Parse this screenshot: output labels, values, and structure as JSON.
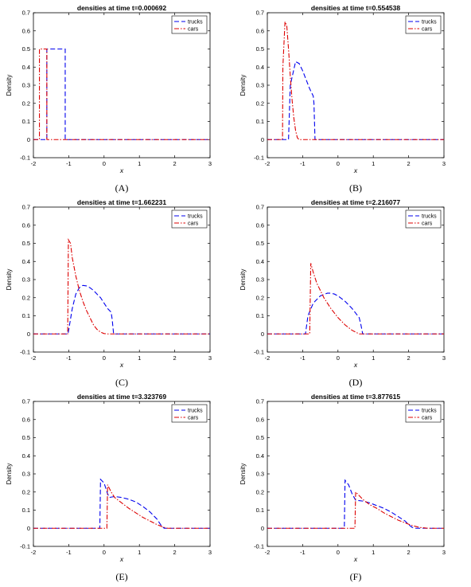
{
  "colors": {
    "trucks": "#0000ee",
    "cars": "#dd0000",
    "axis": "#000000"
  },
  "chart_data": [
    {
      "type": "line",
      "caption": "(A)",
      "title": "densities at time t=0.000692",
      "xlabel": "x",
      "ylabel": "Density",
      "xlim": [
        -2,
        3
      ],
      "ylim": [
        -0.1,
        0.7
      ],
      "xticks": [
        "-2",
        "-1",
        "0",
        "1",
        "2",
        "3"
      ],
      "yticks": [
        "-0.1",
        "0",
        "0.1",
        "0.2",
        "0.3",
        "0.4",
        "0.5",
        "0.6",
        "0.7"
      ],
      "legend": {
        "position": "top-right"
      },
      "series": [
        {
          "name": "trucks",
          "style": "dashed",
          "x": [
            -2,
            -1.62,
            -1.62,
            -1.1,
            -1.1,
            3
          ],
          "y": [
            0,
            0,
            0.5,
            0.5,
            0,
            0
          ]
        },
        {
          "name": "cars",
          "style": "dashdot",
          "x": [
            -2,
            -1.83,
            -1.83,
            -1.62,
            -1.62,
            3
          ],
          "y": [
            0,
            0,
            0.5,
            0.5,
            0,
            0
          ]
        }
      ]
    },
    {
      "type": "line",
      "caption": "(B)",
      "title": "densities at time t=0.554538",
      "xlabel": "x",
      "ylabel": "Density",
      "xlim": [
        -2,
        3
      ],
      "ylim": [
        -0.1,
        0.7
      ],
      "xticks": [
        "-2",
        "-1",
        "0",
        "1",
        "2",
        "3"
      ],
      "yticks": [
        "-0.1",
        "0",
        "0.1",
        "0.2",
        "0.3",
        "0.4",
        "0.5",
        "0.6",
        "0.7"
      ],
      "legend": {
        "position": "top-right"
      },
      "series": [
        {
          "name": "trucks",
          "style": "dashed",
          "x": [
            -2,
            -1.4,
            -1.35,
            -1.2,
            -1.1,
            -1.0,
            -0.9,
            -0.8,
            -0.7,
            -0.68,
            -0.65,
            3
          ],
          "y": [
            0,
            0,
            0.3,
            0.43,
            0.42,
            0.38,
            0.33,
            0.28,
            0.24,
            0.2,
            0,
            0
          ]
        },
        {
          "name": "cars",
          "style": "dashdot",
          "x": [
            -2,
            -1.57,
            -1.56,
            -1.5,
            -1.45,
            -1.4,
            -1.35,
            -1.3,
            -1.25,
            -1.2,
            -1.15,
            -1.1,
            3
          ],
          "y": [
            0,
            0,
            0.4,
            0.65,
            0.63,
            0.5,
            0.35,
            0.22,
            0.12,
            0.05,
            0.01,
            0,
            0
          ]
        }
      ]
    },
    {
      "type": "line",
      "caption": "(C)",
      "title": "densities at time t=1.662231",
      "xlabel": "x",
      "ylabel": "Density",
      "xlim": [
        -2,
        3
      ],
      "ylim": [
        -0.1,
        0.7
      ],
      "xticks": [
        "-2",
        "-1",
        "0",
        "1",
        "2",
        "3"
      ],
      "yticks": [
        "-0.1",
        "0",
        "0.1",
        "0.2",
        "0.3",
        "0.4",
        "0.5",
        "0.6",
        "0.7"
      ],
      "legend": {
        "position": "top-right"
      },
      "series": [
        {
          "name": "trucks",
          "style": "dashed",
          "x": [
            -2,
            -1.02,
            -0.9,
            -0.8,
            -0.7,
            -0.6,
            -0.5,
            -0.4,
            -0.3,
            -0.2,
            -0.1,
            0.0,
            0.1,
            0.2,
            0.23,
            0.27,
            3
          ],
          "y": [
            0,
            0,
            0.14,
            0.22,
            0.255,
            0.268,
            0.265,
            0.255,
            0.24,
            0.22,
            0.2,
            0.17,
            0.14,
            0.12,
            0.08,
            0,
            0
          ]
        },
        {
          "name": "cars",
          "style": "dashdot",
          "x": [
            -2,
            -1.03,
            -1.01,
            -0.95,
            -0.9,
            -0.8,
            -0.7,
            -0.6,
            -0.5,
            -0.4,
            -0.3,
            -0.2,
            -0.1,
            0.0,
            0.1,
            3
          ],
          "y": [
            0,
            0,
            0.52,
            0.5,
            0.42,
            0.32,
            0.24,
            0.18,
            0.13,
            0.09,
            0.05,
            0.025,
            0.01,
            0.002,
            0,
            0
          ]
        }
      ]
    },
    {
      "type": "line",
      "caption": "(D)",
      "title": "densities at time t=2.216077",
      "xlabel": "x",
      "ylabel": "Density",
      "xlim": [
        -2,
        3
      ],
      "ylim": [
        -0.1,
        0.7
      ],
      "xticks": [
        "-2",
        "-1",
        "0",
        "1",
        "2",
        "3"
      ],
      "yticks": [
        "-0.1",
        "0",
        "0.1",
        "0.2",
        "0.3",
        "0.4",
        "0.5",
        "0.6",
        "0.7"
      ],
      "legend": {
        "position": "top-right"
      },
      "series": [
        {
          "name": "trucks",
          "style": "dashed",
          "x": [
            -2,
            -0.92,
            -0.85,
            -0.7,
            -0.5,
            -0.3,
            -0.2,
            -0.1,
            0.0,
            0.2,
            0.4,
            0.6,
            0.65,
            0.7,
            3
          ],
          "y": [
            0,
            0,
            0.1,
            0.17,
            0.21,
            0.225,
            0.225,
            0.22,
            0.21,
            0.18,
            0.14,
            0.09,
            0.05,
            0,
            0
          ]
        },
        {
          "name": "cars",
          "style": "dashdot",
          "x": [
            -2,
            -0.8,
            -0.77,
            -0.7,
            -0.6,
            -0.5,
            -0.4,
            -0.3,
            -0.2,
            -0.1,
            0.0,
            0.2,
            0.4,
            0.5,
            0.6,
            3
          ],
          "y": [
            0,
            0,
            0.39,
            0.34,
            0.28,
            0.24,
            0.2,
            0.17,
            0.14,
            0.115,
            0.09,
            0.05,
            0.02,
            0.01,
            0,
            0
          ]
        }
      ]
    },
    {
      "type": "line",
      "caption": "(E)",
      "title": "densities at time t=3.323769",
      "xlabel": "x",
      "ylabel": "Density",
      "xlim": [
        -2,
        3
      ],
      "ylim": [
        -0.1,
        0.7
      ],
      "xticks": [
        "-2",
        "-1",
        "0",
        "1",
        "2",
        "3"
      ],
      "yticks": [
        "-0.1",
        "0",
        "0.1",
        "0.2",
        "0.3",
        "0.4",
        "0.5",
        "0.6",
        "0.7"
      ],
      "legend": {
        "position": "top-right"
      },
      "series": [
        {
          "name": "trucks",
          "style": "dashed",
          "x": [
            -2,
            -0.12,
            -0.1,
            0.0,
            0.1,
            0.15,
            0.3,
            0.5,
            0.7,
            0.9,
            1.1,
            1.3,
            1.5,
            1.6,
            1.7,
            3
          ],
          "y": [
            0,
            0,
            0.27,
            0.25,
            0.19,
            0.17,
            0.175,
            0.17,
            0.16,
            0.145,
            0.12,
            0.09,
            0.05,
            0.02,
            0,
            0
          ]
        },
        {
          "name": "cars",
          "style": "dashdot",
          "x": [
            -2,
            0.08,
            0.1,
            0.2,
            0.3,
            0.5,
            0.7,
            0.9,
            1.1,
            1.3,
            1.5,
            1.7,
            1.8,
            3
          ],
          "y": [
            0,
            0,
            0.24,
            0.2,
            0.17,
            0.14,
            0.11,
            0.085,
            0.06,
            0.04,
            0.02,
            0.005,
            0,
            0
          ]
        }
      ]
    },
    {
      "type": "line",
      "caption": "(F)",
      "title": "densities at time t=3.877615",
      "xlabel": "x",
      "ylabel": "Density",
      "xlim": [
        -2,
        3
      ],
      "ylim": [
        -0.1,
        0.7
      ],
      "xticks": [
        "-2",
        "-1",
        "0",
        "1",
        "2",
        "3"
      ],
      "yticks": [
        "-0.1",
        "0",
        "0.1",
        "0.2",
        "0.3",
        "0.4",
        "0.5",
        "0.6",
        "0.7"
      ],
      "legend": {
        "position": "top-right"
      },
      "series": [
        {
          "name": "trucks",
          "style": "dashed",
          "x": [
            -2,
            0.18,
            0.2,
            0.3,
            0.4,
            0.5,
            0.7,
            0.9,
            1.1,
            1.3,
            1.5,
            1.7,
            1.9,
            2.0,
            2.1,
            2.2,
            3
          ],
          "y": [
            0,
            0,
            0.265,
            0.24,
            0.19,
            0.155,
            0.15,
            0.14,
            0.125,
            0.11,
            0.09,
            0.065,
            0.04,
            0.02,
            0.005,
            0,
            0
          ]
        },
        {
          "name": "cars",
          "style": "dashdot",
          "x": [
            -2,
            0.48,
            0.5,
            0.6,
            0.7,
            0.9,
            1.1,
            1.3,
            1.5,
            1.7,
            1.9,
            2.1,
            2.3,
            2.5,
            2.6,
            3
          ],
          "y": [
            0,
            0,
            0.2,
            0.18,
            0.16,
            0.13,
            0.11,
            0.085,
            0.065,
            0.045,
            0.03,
            0.015,
            0.005,
            0.001,
            0,
            0
          ]
        }
      ]
    }
  ]
}
